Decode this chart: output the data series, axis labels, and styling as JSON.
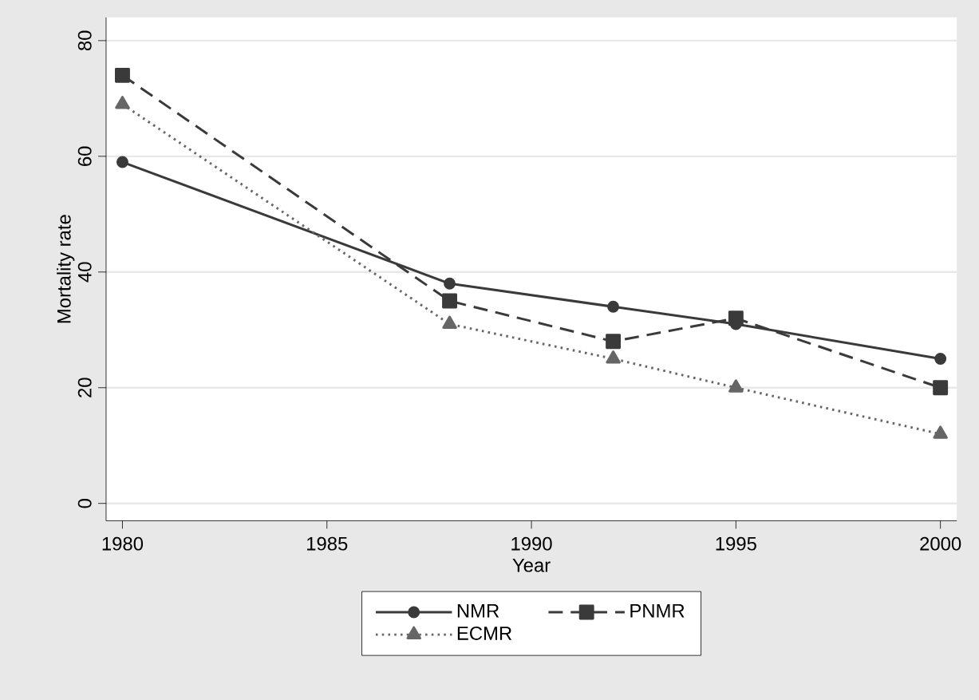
{
  "chart_data": {
    "type": "line",
    "xlabel": "Year",
    "ylabel": "Mortality rate",
    "x": [
      1980,
      1988,
      1992,
      1995,
      2000
    ],
    "xlim": [
      1979.6,
      2000.4
    ],
    "ylim": [
      -3,
      84
    ],
    "xticks": [
      1980,
      1985,
      1990,
      1995,
      2000
    ],
    "yticks": [
      0,
      20,
      40,
      60,
      80
    ],
    "grid": "y",
    "legend": "bottom",
    "series": [
      {
        "name": "NMR",
        "color": "#3a3a3a",
        "marker": "circle",
        "line_style": "solid",
        "values": [
          59,
          38,
          34,
          31,
          25
        ]
      },
      {
        "name": "PNMR",
        "color": "#3a3a3a",
        "marker": "square",
        "line_style": "dashed",
        "values": [
          74,
          35,
          28,
          32,
          20
        ]
      },
      {
        "name": "ECMR",
        "color": "#666666",
        "marker": "triangle",
        "line_style": "dotted",
        "values": [
          69,
          31,
          25,
          20,
          12
        ]
      }
    ]
  }
}
